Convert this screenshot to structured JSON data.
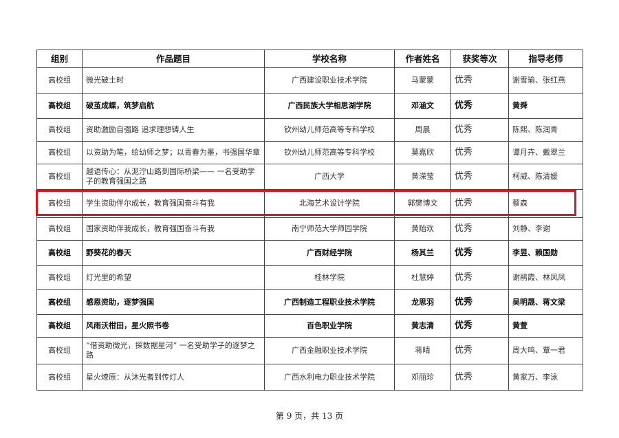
{
  "table": {
    "headers": [
      "组别",
      "作品题目",
      "学校名称",
      "作者姓名",
      "获奖等次",
      "指导老师"
    ],
    "rows": [
      {
        "group": "高校组",
        "title": "微光破土时",
        "school": "广西建设职业技术学院",
        "author": "马蒙蒙",
        "award": "优秀",
        "teacher": "谢雪瑜、张红燕"
      },
      {
        "group": "高校组",
        "title": "破茧成蝶，筑梦启航",
        "school": "广西民族大学相思湖学院",
        "author": "邓涵文",
        "award": "优秀",
        "teacher": "黄舜"
      },
      {
        "group": "高校组",
        "title": "资助激励自强路 追求理想铸人生",
        "school": "钦州幼儿师范高等专科学校",
        "author": "周晨",
        "award": "优秀",
        "teacher": "陈熙、陈润青"
      },
      {
        "group": "高校组",
        "title": "以资助为笔，绘幼师之梦；以青春为墨，书强国华章",
        "school": "钦州幼儿师范高等专科学校",
        "author": "莫嘉欣",
        "award": "优秀",
        "teacher": "谭月卉、戴翠兰"
      },
      {
        "group": "高校组",
        "title": "越语传心：从泥泞山路到国际桥梁—— 一名受助学子的教育强国之路",
        "school": "广西大学",
        "author": "黄溁莹",
        "award": "优秀",
        "teacher": "柯威、陈清媛"
      },
      {
        "group": "高校组",
        "title": "学生资助伴尔成长，教育强国奋斗有我",
        "school": "北海艺术设计学院",
        "author": "郭樊博文",
        "award": "优秀",
        "teacher": "蔡森"
      },
      {
        "group": "高校组",
        "title": "国家资助伴我成长，教育强国奋斗有我",
        "school": "南宁师范大学师园学院",
        "author": "黄贻欢",
        "award": "优秀",
        "teacher": "刘静、李谢"
      },
      {
        "group": "高校组",
        "title": "野葵花的春天",
        "school": "广西财经学院",
        "author": "杨其兰",
        "award": "优秀",
        "teacher": "李昱、赖国勋"
      },
      {
        "group": "高校组",
        "title": "灯光里的希望",
        "school": "桂林学院",
        "author": "杜慧婷",
        "award": "优秀",
        "teacher": "谢鹃霞、林凤凤"
      },
      {
        "group": "高校组",
        "title": "感恩资助，逐梦强国",
        "school": "广西制造工程职业技术学院",
        "author": "龙思羽",
        "award": "优秀",
        "teacher": "吴明晟、蒋文梁"
      },
      {
        "group": "高校组",
        "title": "风雨沃柑田，星火照书卷",
        "school": "百色职业学院",
        "author": "黄志清",
        "award": "优秀",
        "teacher": "黄萱"
      },
      {
        "group": "高校组",
        "title": "“借资助微光，探数据星河” 一名受助学子的逐梦之路",
        "school": "广西金融职业技术学院",
        "author": "蒋晴",
        "award": "优秀",
        "teacher": "周大鸣、覃一君"
      },
      {
        "group": "高校组",
        "title": "星火燎原：从沐光者到传灯人",
        "school": "广西水利电力职业技术学院",
        "author": "邓丽珍",
        "award": "优秀",
        "teacher": "黄家万、李泳"
      }
    ],
    "highlighted_row": 5,
    "highlight_color": "#e0141c"
  },
  "footer": {
    "page_label": "第 9 页，共 13 页"
  }
}
